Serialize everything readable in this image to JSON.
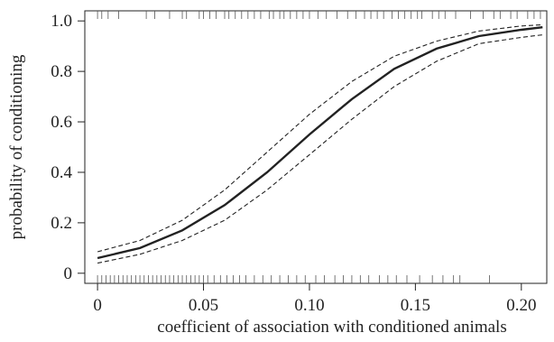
{
  "chart_data": {
    "type": "line",
    "xlabel": "coefficient of association with conditioned animals",
    "ylabel": "probability of conditioning",
    "xlim": [
      -0.006,
      0.212
    ],
    "ylim": [
      -0.04,
      1.04
    ],
    "x_ticks": [
      0,
      0.05,
      0.1,
      0.15,
      0.2
    ],
    "x_tick_labels": [
      "0",
      "0.05",
      "0.10",
      "0.15",
      "0.20"
    ],
    "y_ticks": [
      0,
      0.2,
      0.4,
      0.6,
      0.8,
      1.0
    ],
    "y_tick_labels": [
      "0",
      "0.2",
      "0.4",
      "0.6",
      "0.8",
      "1.0"
    ],
    "grid": false,
    "series": [
      {
        "role": "fit",
        "style": "solid",
        "x": [
          0,
          0.02,
          0.04,
          0.06,
          0.08,
          0.1,
          0.12,
          0.14,
          0.16,
          0.18,
          0.2,
          0.21
        ],
        "y": [
          0.06,
          0.1,
          0.17,
          0.27,
          0.4,
          0.55,
          0.69,
          0.81,
          0.89,
          0.94,
          0.965,
          0.975
        ]
      },
      {
        "role": "upper-ci",
        "style": "dashed",
        "x": [
          0,
          0.02,
          0.04,
          0.06,
          0.08,
          0.1,
          0.12,
          0.14,
          0.16,
          0.18,
          0.2,
          0.21
        ],
        "y": [
          0.085,
          0.13,
          0.21,
          0.33,
          0.48,
          0.63,
          0.76,
          0.86,
          0.92,
          0.96,
          0.98,
          0.985
        ]
      },
      {
        "role": "lower-ci",
        "style": "dashed",
        "x": [
          0,
          0.02,
          0.04,
          0.06,
          0.08,
          0.1,
          0.12,
          0.14,
          0.16,
          0.18,
          0.2,
          0.21
        ],
        "y": [
          0.04,
          0.075,
          0.13,
          0.21,
          0.33,
          0.47,
          0.61,
          0.74,
          0.84,
          0.91,
          0.935,
          0.945
        ]
      }
    ],
    "rug_top": [
      0.0,
      0.002,
      0.005,
      0.01,
      0.023,
      0.027,
      0.034,
      0.04,
      0.042,
      0.048,
      0.05,
      0.053,
      0.056,
      0.06,
      0.062,
      0.065,
      0.068,
      0.071,
      0.074,
      0.077,
      0.081,
      0.083,
      0.086,
      0.088,
      0.091,
      0.094,
      0.097,
      0.1,
      0.104,
      0.108,
      0.113,
      0.118,
      0.122,
      0.126,
      0.129,
      0.132,
      0.135,
      0.139,
      0.142,
      0.145,
      0.148,
      0.151,
      0.153,
      0.158,
      0.161,
      0.164,
      0.169,
      0.176,
      0.182,
      0.187,
      0.19,
      0.195,
      0.198,
      0.203,
      0.206,
      0.209
    ],
    "rug_bottom": [
      0.0,
      0.002,
      0.004,
      0.006,
      0.008,
      0.01,
      0.012,
      0.014,
      0.016,
      0.018,
      0.02,
      0.022,
      0.024,
      0.026,
      0.028,
      0.03,
      0.032,
      0.034,
      0.036,
      0.038,
      0.04,
      0.042,
      0.044,
      0.046,
      0.048,
      0.05,
      0.052,
      0.055,
      0.058,
      0.061,
      0.064,
      0.067,
      0.07,
      0.074,
      0.078,
      0.082,
      0.086,
      0.09,
      0.094,
      0.098,
      0.103,
      0.107,
      0.112,
      0.116,
      0.12,
      0.124,
      0.128,
      0.133,
      0.137,
      0.141,
      0.146,
      0.152,
      0.158,
      0.163,
      0.168,
      0.171,
      0.185
    ]
  }
}
